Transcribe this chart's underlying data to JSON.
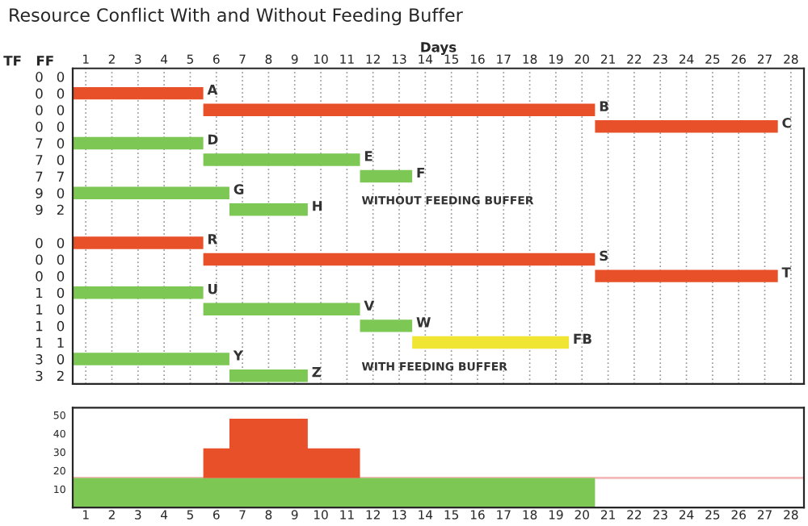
{
  "chart_data": [
    {
      "type": "bar",
      "orientation": "horizontal",
      "title": "Resource Conflict With and Without Feeding Buffer",
      "xlabel": "Days",
      "ylabel": "TF   FF",
      "categories": [
        "0   0",
        "0   0",
        "0   0",
        "0   0",
        "7   0",
        "7   0",
        "7   7",
        "9   0",
        "9   2",
        null,
        "0   0",
        "0   0",
        "0   0",
        "1   0",
        "1   0",
        "1   0",
        "1   1",
        "3   0",
        "3   2"
      ],
      "base": [
        null,
        0,
        5,
        20,
        0,
        5,
        11,
        0,
        6,
        null,
        0,
        5,
        20,
        0,
        5,
        11,
        13,
        0,
        6
      ],
      "values": [
        null,
        5,
        15,
        7,
        5,
        6,
        2,
        6,
        3,
        null,
        5,
        15,
        7,
        5,
        6,
        2,
        6,
        6,
        3
      ],
      "colors": [
        "#e8502a",
        "#e8502a",
        "#e8502a",
        "#e8502a",
        "#7dc855",
        "#7dc855",
        "#7dc855",
        "#7dc855",
        "#7dc855",
        "#7dc855",
        "#e8502a",
        "#e8502a",
        "#e8502a",
        "#7dc855",
        "#7dc855",
        "#7dc855",
        "#f0e532",
        "#7dc855",
        "#7dc855"
      ],
      "value_labels": [
        null,
        "A",
        "B",
        "C",
        "D",
        "E",
        "F",
        "G",
        "H",
        null,
        "R",
        "S",
        "T",
        "U",
        "V",
        "W",
        "FB",
        "Y",
        "Z"
      ],
      "annotations": [
        "WITHOUT FEEDING BUFFER",
        "WITH FEEDING BUFFER"
      ],
      "xlim": [
        0,
        28
      ],
      "xticks": [
        {
          "value": 0.5,
          "label": "1"
        },
        {
          "value": 1.5,
          "label": "2"
        },
        {
          "value": 2.5,
          "label": "3"
        },
        {
          "value": 3.5,
          "label": "4"
        },
        {
          "value": 4.5,
          "label": "5"
        },
        {
          "value": 5.5,
          "label": "6"
        },
        {
          "value": 6.5,
          "label": "7"
        },
        {
          "value": 7.5,
          "label": "8"
        },
        {
          "value": 8.5,
          "label": "9"
        },
        {
          "value": 9.5,
          "label": "10"
        },
        {
          "value": 10.5,
          "label": "11"
        },
        {
          "value": 11.5,
          "label": "12"
        },
        {
          "value": 12.5,
          "label": "13"
        },
        {
          "value": 13.5,
          "label": "14"
        },
        {
          "value": 14.5,
          "label": "15"
        },
        {
          "value": 15.5,
          "label": "16"
        },
        {
          "value": 16.5,
          "label": "17"
        },
        {
          "value": 17.5,
          "label": "18"
        },
        {
          "value": 18.5,
          "label": "19"
        },
        {
          "value": 19.5,
          "label": "20"
        },
        {
          "value": 20.5,
          "label": "21"
        },
        {
          "value": 21.5,
          "label": "22"
        },
        {
          "value": 22.5,
          "label": "23"
        },
        {
          "value": 23.5,
          "label": "24"
        },
        {
          "value": 24.5,
          "label": "25"
        },
        {
          "value": 25.5,
          "label": "26"
        },
        {
          "value": 26.5,
          "label": "27"
        },
        {
          "value": 27.5,
          "label": "28"
        }
      ],
      "grid": "x",
      "legend": false
    },
    {
      "type": "area",
      "stacked": true,
      "x": [
        0,
        5,
        5,
        6,
        6,
        9,
        9,
        11,
        11,
        20
      ],
      "series": [
        {
          "color": "#7dc855",
          "values": [
            16,
            16,
            16,
            16,
            16,
            16,
            16,
            16,
            16,
            16
          ]
        },
        {
          "color": "#e8502a",
          "values": [
            0,
            0,
            16,
            16,
            32,
            32,
            16,
            16,
            0,
            0
          ]
        }
      ],
      "xlim": [
        0,
        28
      ],
      "xticks": [
        {
          "value": 0.5,
          "label": "1"
        },
        {
          "value": 1.5,
          "label": "2"
        },
        {
          "value": 2.5,
          "label": "3"
        },
        {
          "value": 3.5,
          "label": "4"
        },
        {
          "value": 4.5,
          "label": "5"
        },
        {
          "value": 5.5,
          "label": "6"
        },
        {
          "value": 6.5,
          "label": "7"
        },
        {
          "value": 7.5,
          "label": "8"
        },
        {
          "value": 8.5,
          "label": "9"
        },
        {
          "value": 9.5,
          "label": "10"
        },
        {
          "value": 10.5,
          "label": "11"
        },
        {
          "value": 11.5,
          "label": "12"
        },
        {
          "value": 12.5,
          "label": "13"
        },
        {
          "value": 13.5,
          "label": "14"
        },
        {
          "value": 14.5,
          "label": "15"
        },
        {
          "value": 15.5,
          "label": "16"
        },
        {
          "value": 16.5,
          "label": "17"
        },
        {
          "value": 17.5,
          "label": "18"
        },
        {
          "value": 18.5,
          "label": "19"
        },
        {
          "value": 19.5,
          "label": "20"
        },
        {
          "value": 20.5,
          "label": "21"
        },
        {
          "value": 21.5,
          "label": "22"
        },
        {
          "value": 22.5,
          "label": "23"
        },
        {
          "value": 23.5,
          "label": "24"
        },
        {
          "value": 24.5,
          "label": "25"
        },
        {
          "value": 25.5,
          "label": "26"
        },
        {
          "value": 26.5,
          "label": "27"
        },
        {
          "value": 27.5,
          "label": "28"
        }
      ],
      "ref_lines": [
        {
          "axis": "y",
          "value": 16,
          "color": "#f4b8b8"
        }
      ],
      "ylim": [
        0,
        54
      ],
      "yticks": [
        10,
        20,
        30,
        40,
        50
      ],
      "grid": false,
      "legend": false
    }
  ]
}
